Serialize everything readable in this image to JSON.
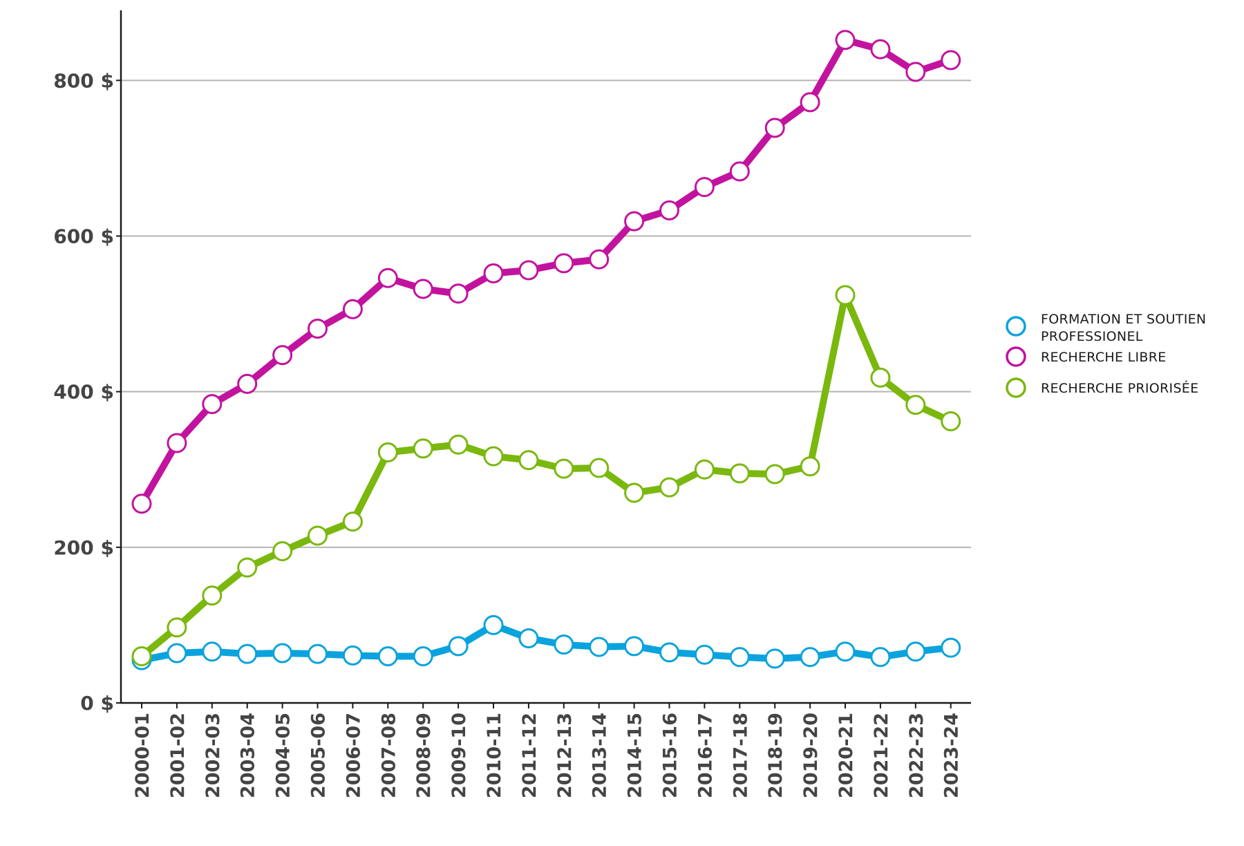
{
  "chart_data": {
    "type": "line",
    "title": "",
    "xlabel": "",
    "ylabel": "",
    "x": [
      "2000-01",
      "2001-02",
      "2002-03",
      "2003-04",
      "2004-05",
      "2005-06",
      "2006-07",
      "2007-08",
      "2008-09",
      "2009-10",
      "2010-11",
      "2011-12",
      "2012-13",
      "2013-14",
      "2014-15",
      "2015-16",
      "2016-17",
      "2017-18",
      "2018-19",
      "2019-20",
      "2020-21",
      "2021-22",
      "2022-23",
      "2023-24"
    ],
    "ylim": [
      0,
      890
    ],
    "yticks": [
      0,
      200,
      400,
      600,
      800
    ],
    "ytick_labels": [
      "0 $",
      "200 $",
      "400 $",
      "600 $",
      "800 $"
    ],
    "grid": "horizontal",
    "legend_position": "right",
    "marker": "open-circle",
    "series": [
      {
        "name": "FORMATION ET SOUTIEN PROFESSIONEL",
        "legend_lines": [
          "FORMATION ET SOUTIEN",
          "PROFESSIONEL"
        ],
        "color": "#0aa3dd",
        "values": [
          55,
          64,
          66,
          63,
          64,
          63,
          61,
          60,
          60,
          73,
          100,
          83,
          75,
          72,
          73,
          65,
          62,
          59,
          57,
          59,
          66,
          59,
          66,
          71
        ]
      },
      {
        "name": "RECHERCHE LIBRE",
        "legend_lines": [
          "RECHERCHE LIBRE"
        ],
        "color": "#c2139f",
        "values": [
          256,
          334,
          384,
          410,
          447,
          481,
          506,
          546,
          532,
          526,
          552,
          556,
          565,
          570,
          619,
          633,
          663,
          683,
          739,
          772,
          852,
          840,
          811,
          826
        ]
      },
      {
        "name": "RECHERCHE PRIORISÉE",
        "legend_lines": [
          "RECHERCHE PRIORISÉE"
        ],
        "color": "#7ab80e",
        "values": [
          60,
          97,
          138,
          174,
          195,
          215,
          233,
          322,
          327,
          332,
          317,
          312,
          301,
          302,
          270,
          277,
          300,
          295,
          294,
          304,
          524,
          418,
          383,
          362
        ]
      }
    ]
  }
}
